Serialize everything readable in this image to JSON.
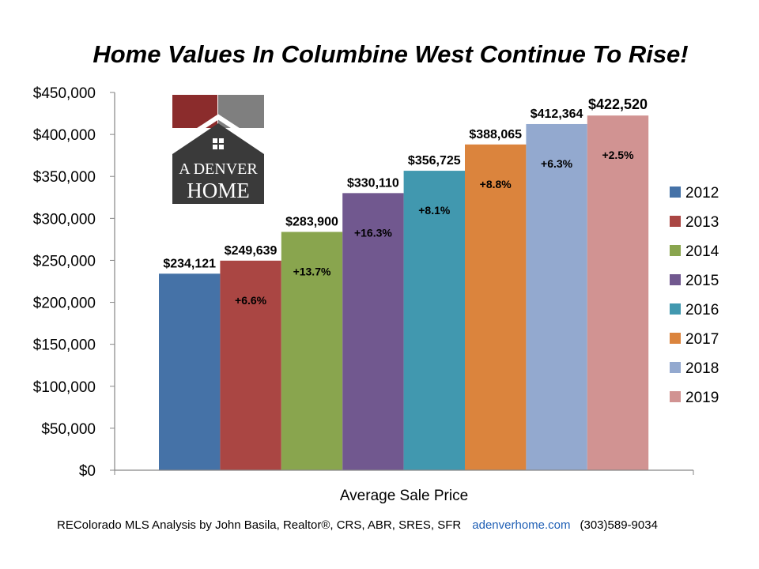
{
  "chart_data": {
    "type": "bar",
    "title": "Home Values In Columbine West Continue To Rise!",
    "xlabel": "Average Sale Price",
    "ylabel": "",
    "ylim": [
      0,
      450000
    ],
    "yticks": [
      0,
      50000,
      100000,
      150000,
      200000,
      250000,
      300000,
      350000,
      400000,
      450000
    ],
    "ytick_labels": [
      "$0",
      "$50,000",
      "$100,000",
      "$150,000",
      "$200,000",
      "$250,000",
      "$300,000",
      "$350,000",
      "$400,000",
      "$450,000"
    ],
    "legend_position": "right",
    "grid": false,
    "series": [
      {
        "name": "2012",
        "value": 234121,
        "label": "$234,121",
        "change": "",
        "color": "#4572a7"
      },
      {
        "name": "2013",
        "value": 249639,
        "label": "$249,639",
        "change": "+6.6%",
        "color": "#aa4643"
      },
      {
        "name": "2014",
        "value": 283900,
        "label": "$283,900",
        "change": "+13.7%",
        "color": "#89a54e"
      },
      {
        "name": "2015",
        "value": 330110,
        "label": "$330,110",
        "change": "+16.3%",
        "color": "#71588f"
      },
      {
        "name": "2016",
        "value": 356725,
        "label": "$356,725",
        "change": "+8.1%",
        "color": "#4198af"
      },
      {
        "name": "2017",
        "value": 388065,
        "label": "$388,065",
        "change": "+8.8%",
        "color": "#db843d"
      },
      {
        "name": "2018",
        "value": 412364,
        "label": "$412,364",
        "change": "+6.3%",
        "color": "#93a9cf"
      },
      {
        "name": "2019",
        "value": 422520,
        "label": "$422,520",
        "change": "+2.5%",
        "color": "#d19392"
      }
    ]
  },
  "logo": {
    "line1": "A DENVER",
    "line2": "HOME",
    "colors": {
      "left_square": "#8b2c2c",
      "right_square": "#7f7f7f",
      "house": "#3a3a3a"
    }
  },
  "footer": {
    "credit": "REColorado MLS  Analysis by John Basila, Realtor®, CRS, ABR, SRES, SFR",
    "website": "adenverhome.com",
    "phone": "(303)589-9034"
  }
}
